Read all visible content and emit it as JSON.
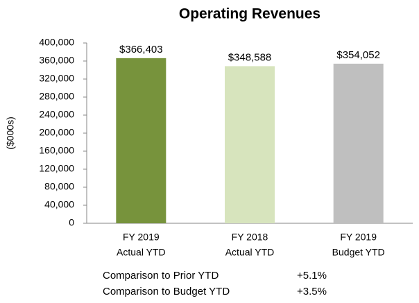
{
  "chart_data": {
    "type": "bar",
    "title": "Operating Revenues",
    "y_label": "($000s)",
    "categories": [
      [
        "FY 2019",
        "Actual YTD"
      ],
      [
        "FY 2018",
        "Actual YTD"
      ],
      [
        "FY 2019",
        "Budget YTD"
      ]
    ],
    "values": [
      366403,
      348588,
      354052
    ],
    "value_labels": [
      "$366,403",
      "$348,588",
      "$354,052"
    ],
    "colors": [
      "#77933c",
      "#d7e4bd",
      "#bfbfbf"
    ],
    "ylim": [
      0,
      400000
    ],
    "yticks": [
      0,
      {
        "value": 40000,
        "label": "40,000"
      },
      {
        "value": 80000,
        "label": "80,000"
      },
      {
        "value": 120000,
        "label": "120,000"
      },
      {
        "value": 160000,
        "label": "160,000"
      },
      {
        "value": 200000,
        "label": "200,000"
      },
      {
        "value": 240000,
        "label": "240,000"
      },
      {
        "value": 280000,
        "label": "280,000"
      },
      {
        "value": 320000,
        "label": "320,000"
      },
      {
        "value": 360000,
        "label": "360,000"
      },
      {
        "value": 400000,
        "label": "400,000"
      }
    ],
    "grid": false,
    "annotations": [
      {
        "label": "Comparison to Prior YTD",
        "value": "+5.1%"
      },
      {
        "label": "Comparison to Budget YTD",
        "value": "+3.5%"
      }
    ]
  }
}
